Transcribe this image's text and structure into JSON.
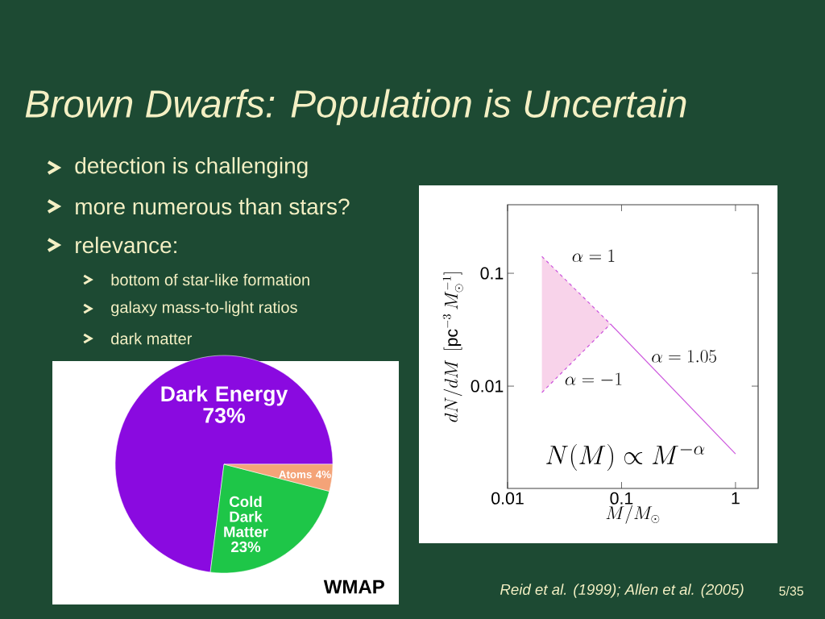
{
  "chart_data": [
    {
      "type": "line",
      "title": "Brown Dwarfs: Population is Uncertain",
      "xlabel": "M/M_{\\odot}",
      "ylabel": "dN/dM\\ \\left[\\mathrm{pc}^{-3}\\,M_{\\odot}^{-1}\\right]",
      "log": "xy",
      "xlim": [
        0.01,
        1.58
      ],
      "ylim": [
        0.00124,
        0.405
      ],
      "xticks": [
        0.01,
        0.1,
        1
      ],
      "yticks": [
        0.01,
        0.1
      ],
      "series": [
        {
          "type": "line",
          "line_style": "dashed",
          "color": "#cc55dd",
          "x": [
            0.02,
            0.08
          ],
          "values": [
            0.141,
            0.0355
          ]
        },
        {
          "type": "line",
          "line_style": "dashed",
          "color": "#cc55dd",
          "x": [
            0.02,
            0.08
          ],
          "values": [
            0.00877,
            0.0355
          ]
        },
        {
          "type": "line",
          "line_style": "solid",
          "color": "#cc55dd",
          "x": [
            0.08,
            1
          ],
          "values": [
            0.0355,
            0.00251
          ]
        }
      ],
      "annotations": [
        "detection is challenging",
        "more numerous than stars?",
        "relevance:",
        "bottom of star-like formation",
        "galaxy mass-to-light ratios",
        "dark matter",
        "Reid et al. (1999); Allen et al. (2005)",
        "5/35",
        "\\alpha = 1",
        "\\alpha = -1",
        "\\alpha = 1.05",
        "N(M) \\propto M^{-\\alpha}"
      ]
    },
    {
      "type": "pie",
      "categories": [
        "Dark Energy",
        "Cold Dark Matter",
        "Atoms"
      ],
      "values": [
        73,
        23,
        4
      ],
      "colors": [
        "#8a0ae0",
        "#1ec648",
        "#f4a378"
      ],
      "value_labels": [
        "73%",
        "23%",
        "4%"
      ],
      "annotations": [
        "WMAP"
      ]
    }
  ]
}
